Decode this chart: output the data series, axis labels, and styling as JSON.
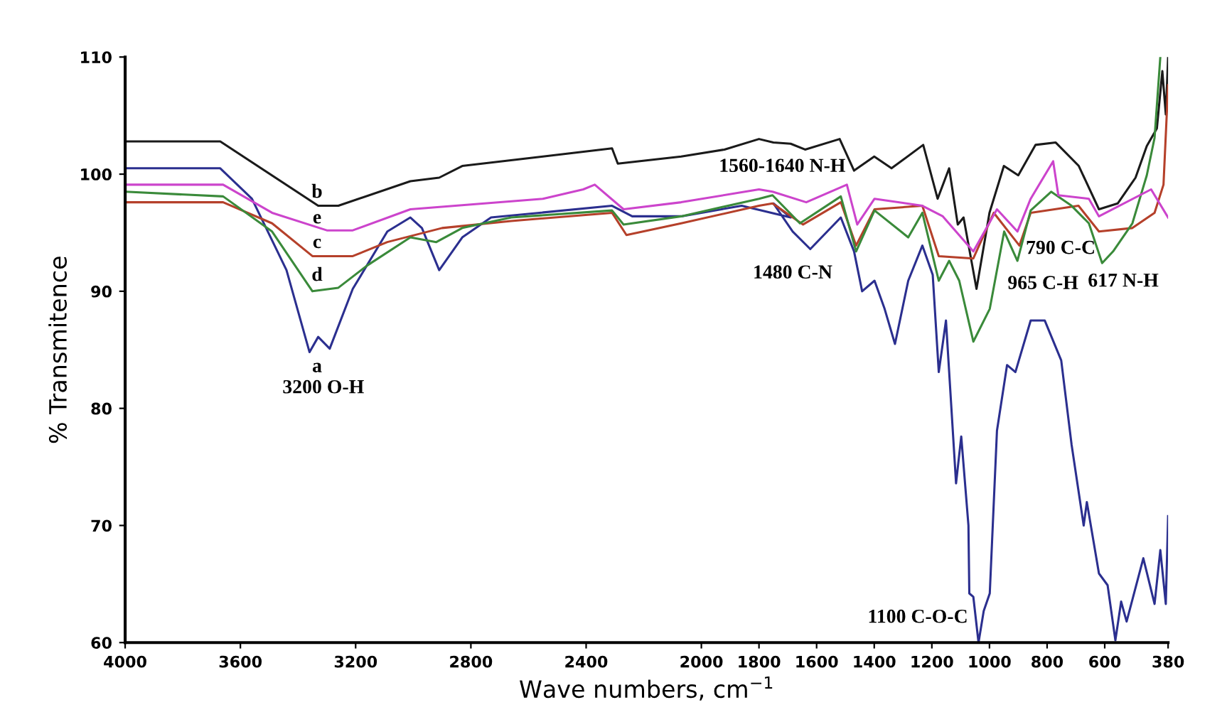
{
  "chart_data": {
    "type": "line",
    "xlabel": "Wave numbers, cm$^{−1}$",
    "ylabel": "% Transmitence",
    "xlim": [
      4000,
      380
    ],
    "xticks": [
      4000,
      3600,
      3200,
      2800,
      2400,
      2000,
      1800,
      1600,
      1400,
      1200,
      1000,
      800,
      600,
      380
    ],
    "ylim": [
      60,
      110
    ],
    "yticks": [
      60,
      70,
      80,
      90,
      100,
      110
    ],
    "grid": false,
    "marker": "none",
    "line_style": "solid",
    "series": [
      {
        "color": "#2b2f8f",
        "x": [
          4000,
          3670,
          3560,
          3440,
          3360,
          3330,
          3290,
          3210,
          3090,
          3010,
          2970,
          2910,
          2830,
          2730,
          2310,
          2240,
          2070,
          1860,
          1690,
          1750,
          1683,
          1622,
          1516,
          1470,
          1442,
          1399,
          1364,
          1328,
          1282,
          1233,
          1197,
          1176,
          1151,
          1116,
          1098,
          1073,
          1070,
          1056,
          1038,
          1020,
          999,
          974,
          939,
          910,
          857,
          808,
          751,
          715,
          673,
          662,
          620,
          590,
          563,
          543,
          524,
          466,
          427,
          407,
          388,
          380
        ],
        "values": [
          100.5,
          100.5,
          97.9,
          91.8,
          84.8,
          86.1,
          85.1,
          90.2,
          95.1,
          96.3,
          95.4,
          91.8,
          94.6,
          96.3,
          97.3,
          96.4,
          96.4,
          97.3,
          96.3,
          97.5,
          95.1,
          93.6,
          96.3,
          93.4,
          90.0,
          90.9,
          88.5,
          85.5,
          90.9,
          93.9,
          91.4,
          83.1,
          87.5,
          73.6,
          77.6,
          70.0,
          64.2,
          63.9,
          60.0,
          62.7,
          64.2,
          78.1,
          83.7,
          83.1,
          87.5,
          87.5,
          84.1,
          76.9,
          70.0,
          72.0,
          65.9,
          64.9,
          60.2,
          63.5,
          61.8,
          67.2,
          63.3,
          67.9,
          63.3,
          70.8
        ]
      },
      {
        "color": "#1a1a1a",
        "x": [
          4000,
          3670,
          3330,
          3260,
          3010,
          2910,
          2830,
          2550,
          2310,
          2290,
          2070,
          1920,
          1800,
          1750,
          1690,
          1640,
          1520,
          1470,
          1400,
          1340,
          1230,
          1180,
          1140,
          1110,
          1090,
          1045,
          1000,
          950,
          900,
          840,
          770,
          690,
          620,
          555,
          493,
          454,
          419,
          400,
          388,
          380
        ],
        "values": [
          102.8,
          102.8,
          97.3,
          97.3,
          99.4,
          99.7,
          100.7,
          101.5,
          102.2,
          100.9,
          101.5,
          102.1,
          103.0,
          102.7,
          102.6,
          102.1,
          103.0,
          100.3,
          101.5,
          100.5,
          102.5,
          97.9,
          100.5,
          95.7,
          96.3,
          90.2,
          96.7,
          100.7,
          99.9,
          102.5,
          102.7,
          100.7,
          97.0,
          97.5,
          99.7,
          102.4,
          103.9,
          108.8,
          105.1,
          110
        ]
      },
      {
        "color": "#b5402a",
        "x": [
          4000,
          3660,
          3490,
          3350,
          3210,
          3090,
          2900,
          2660,
          2310,
          2260,
          2070,
          1800,
          1753,
          1647,
          1516,
          1463,
          1399,
          1233,
          1176,
          1056,
          985,
          896,
          857,
          691,
          620,
          504,
          427,
          396,
          380
        ],
        "values": [
          97.6,
          97.6,
          95.8,
          93.0,
          93.0,
          94.2,
          95.4,
          96.0,
          96.7,
          94.8,
          95.8,
          97.3,
          97.5,
          95.7,
          97.6,
          93.9,
          97.0,
          97.3,
          93.0,
          92.8,
          96.7,
          93.9,
          96.7,
          97.3,
          95.1,
          95.4,
          96.7,
          99.1,
          107.6
        ]
      },
      {
        "color": "#3a8a3a",
        "x": [
          4000,
          3660,
          3490,
          3350,
          3260,
          3160,
          3010,
          2920,
          2830,
          2660,
          2310,
          2270,
          2070,
          1800,
          1753,
          1658,
          1516,
          1463,
          1399,
          1282,
          1233,
          1176,
          1140,
          1105,
          1056,
          999,
          949,
          903,
          857,
          786,
          715,
          655,
          609,
          571,
          504,
          454,
          427,
          407
        ],
        "values": [
          98.5,
          98.1,
          95.1,
          90.0,
          90.3,
          92.2,
          94.6,
          94.2,
          95.4,
          96.3,
          96.9,
          95.7,
          96.4,
          97.9,
          98.2,
          95.8,
          98.1,
          93.4,
          96.9,
          94.6,
          96.7,
          90.9,
          92.6,
          90.9,
          85.7,
          88.5,
          95.1,
          92.6,
          96.9,
          98.5,
          97.3,
          95.8,
          92.4,
          93.4,
          95.8,
          99.9,
          103.1,
          110
        ]
      },
      {
        "color": "#cc44cc",
        "x": [
          4000,
          3660,
          3490,
          3300,
          3210,
          3010,
          2550,
          2410,
          2370,
          2270,
          2070,
          1800,
          1753,
          1636,
          1495,
          1459,
          1399,
          1233,
          1162,
          1056,
          974,
          903,
          857,
          779,
          761,
          655,
          620,
          439,
          380
        ],
        "values": [
          99.1,
          99.1,
          96.7,
          95.2,
          95.2,
          97.0,
          97.9,
          98.7,
          99.1,
          97.0,
          97.6,
          98.7,
          98.5,
          97.6,
          99.1,
          95.7,
          97.9,
          97.3,
          96.4,
          93.4,
          97.0,
          95.1,
          97.9,
          101.1,
          98.2,
          97.9,
          96.4,
          98.7,
          96.3
        ]
      }
    ],
    "annotations": [
      "a",
      "b",
      "e",
      "c",
      "d",
      "3200 O-H",
      "1560-1640 N-H",
      "1480 C-N",
      "965 C-H",
      "790 C-C",
      "617 N-H",
      "1100 C-O-C"
    ]
  }
}
